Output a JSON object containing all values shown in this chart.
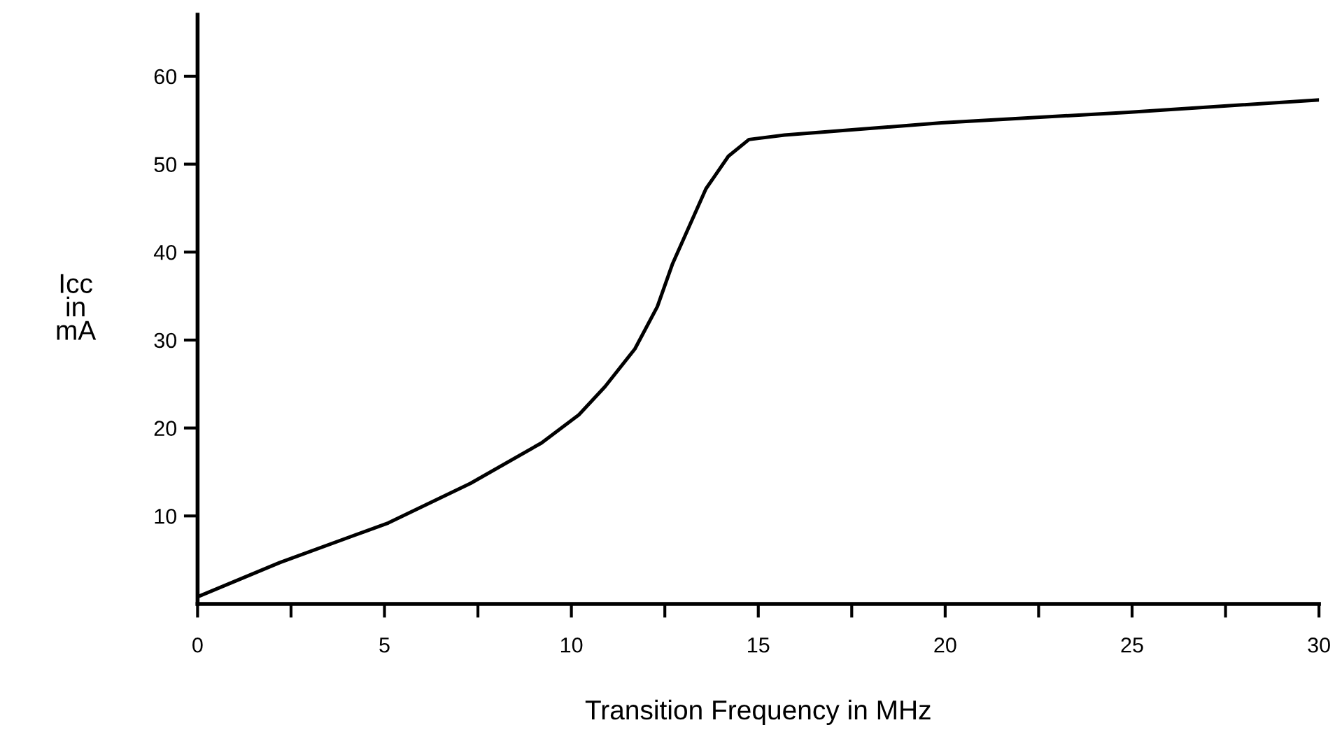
{
  "chart_data": {
    "type": "line",
    "xlabel": "Transition Frequency in MHz",
    "ylabel": "Icc\nin\nmA",
    "series": [
      {
        "color": "#000000",
        "x": [
          0,
          2.2,
          5.1,
          7.3,
          9.2,
          10.2,
          10.9,
          11.7,
          12.3,
          12.7,
          13.6,
          14.2,
          14.75,
          15.7,
          19.9,
          24.9,
          30
        ],
        "values": [
          0.8,
          4.7,
          9.2,
          13.7,
          18.3,
          21.5,
          24.7,
          29,
          33.8,
          38.6,
          47.2,
          50.9,
          52.8,
          53.3,
          54.7,
          55.9,
          57.3
        ]
      }
    ],
    "xlim": [
      0,
      30
    ],
    "xticks": [
      0,
      {
        "value": 2.5,
        "label": null
      },
      5,
      {
        "value": 7.5,
        "label": null
      },
      10,
      {
        "value": 12.5,
        "label": null
      },
      15,
      {
        "value": 17.5,
        "label": null
      },
      20,
      {
        "value": 22.5,
        "label": null
      },
      25,
      {
        "value": 27.5,
        "label": null
      },
      30
    ],
    "ylim": [
      0,
      67
    ],
    "yticks": [
      10,
      20,
      30,
      40,
      50,
      60
    ],
    "grid": false,
    "marker": "none",
    "line_style": "solid"
  }
}
